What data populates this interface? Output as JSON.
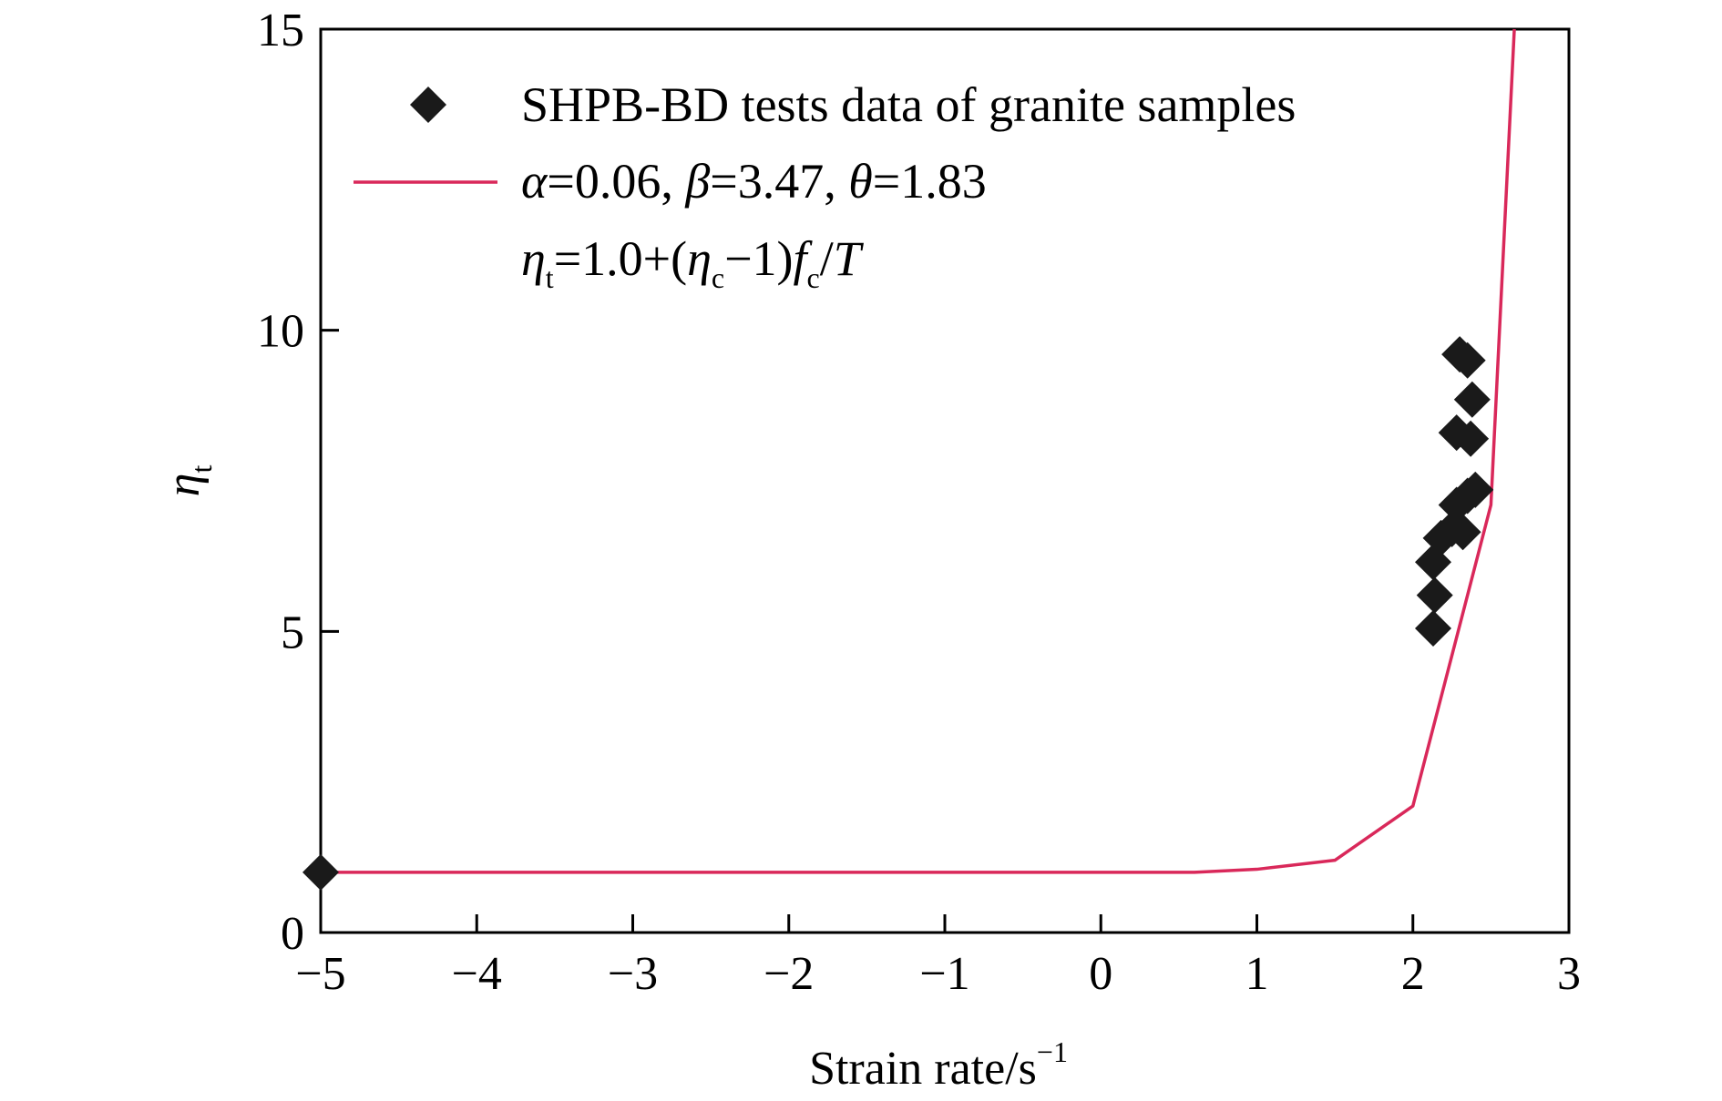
{
  "chart_data": {
    "type": "scatter",
    "xlabel": "Strain rate/s",
    "xlabel_sup": "−1",
    "ylabel": "η",
    "ylabel_sub": "t",
    "xlim": [
      -5,
      3
    ],
    "ylim": [
      0,
      15
    ],
    "x_ticks": [
      {
        "value": -5,
        "label": "−5"
      },
      {
        "value": -4,
        "label": "−4"
      },
      {
        "value": -3,
        "label": "−3"
      },
      {
        "value": -2,
        "label": "−2"
      },
      {
        "value": -1,
        "label": "−1"
      },
      {
        "value": 0,
        "label": "0"
      },
      {
        "value": 1,
        "label": "1"
      },
      {
        "value": 2,
        "label": "2"
      },
      {
        "value": 3,
        "label": "3"
      }
    ],
    "y_ticks": [
      {
        "value": 0,
        "label": "0"
      },
      {
        "value": 5,
        "label": "5"
      },
      {
        "value": 10,
        "label": "10"
      },
      {
        "value": 15,
        "label": "15"
      }
    ],
    "grid": false,
    "legend_position": "top",
    "series": [
      {
        "name": "SHPB-BD tests data of granite samples",
        "kind": "scatter",
        "marker": "diamond",
        "color": "#1a1a1a",
        "points": [
          {
            "x": -5.0,
            "y": 1.0
          },
          {
            "x": 2.13,
            "y": 5.05
          },
          {
            "x": 2.14,
            "y": 5.6
          },
          {
            "x": 2.13,
            "y": 6.15
          },
          {
            "x": 2.18,
            "y": 6.55
          },
          {
            "x": 2.25,
            "y": 6.7
          },
          {
            "x": 2.28,
            "y": 7.1
          },
          {
            "x": 2.32,
            "y": 6.65
          },
          {
            "x": 2.35,
            "y": 7.25
          },
          {
            "x": 2.4,
            "y": 7.35
          },
          {
            "x": 2.28,
            "y": 8.3
          },
          {
            "x": 2.37,
            "y": 8.2
          },
          {
            "x": 2.38,
            "y": 8.85
          },
          {
            "x": 2.3,
            "y": 9.6
          },
          {
            "x": 2.35,
            "y": 9.5
          }
        ]
      },
      {
        "name_parts": [
          "α",
          "=0.06, ",
          "β",
          "=3.47, ",
          "θ",
          "=1.83"
        ],
        "kind": "line",
        "color": "#d9285a",
        "points": [
          {
            "x": -5.0,
            "y": 1.0
          },
          {
            "x": 0.6,
            "y": 1.0
          },
          {
            "x": 1.0,
            "y": 1.05
          },
          {
            "x": 1.5,
            "y": 1.2
          },
          {
            "x": 2.0,
            "y": 2.1
          },
          {
            "x": 2.5,
            "y": 7.1
          },
          {
            "x": 2.65,
            "y": 15.0
          }
        ]
      }
    ],
    "annotation_parts": [
      {
        "t": "η",
        "style": "italic"
      },
      {
        "t": "t",
        "style": "sub"
      },
      {
        "t": "=1.0+(",
        "style": "normal"
      },
      {
        "t": "η",
        "style": "italic"
      },
      {
        "t": "c",
        "style": "sub"
      },
      {
        "t": "−1)",
        "style": "normal"
      },
      {
        "t": "f",
        "style": "italic"
      },
      {
        "t": "c",
        "style": "sub"
      },
      {
        "t": "/",
        "style": "normal"
      },
      {
        "t": "T",
        "style": "italic"
      }
    ]
  }
}
